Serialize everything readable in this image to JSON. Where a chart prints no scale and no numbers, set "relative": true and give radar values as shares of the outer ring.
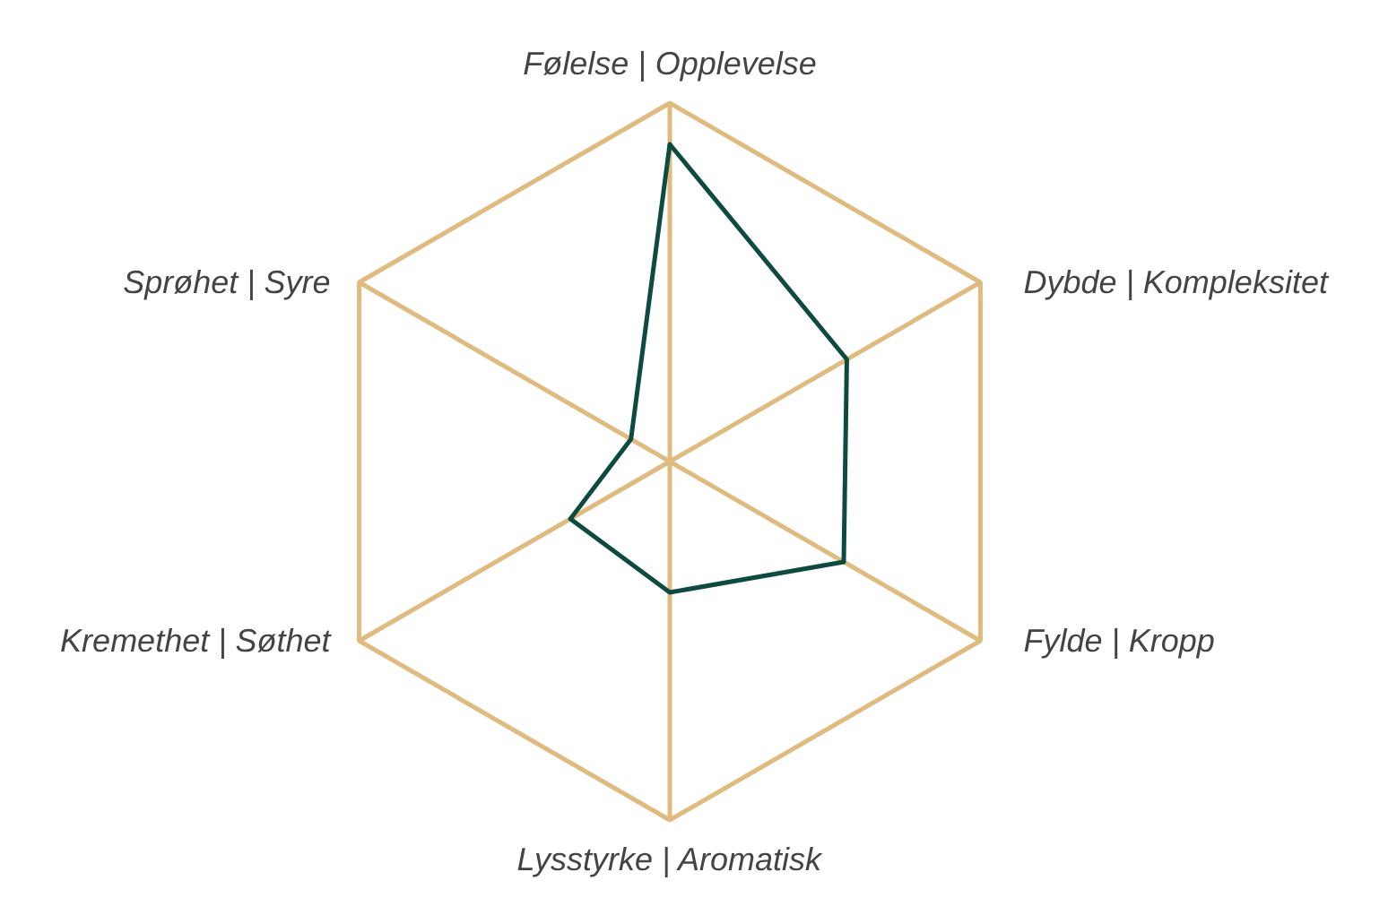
{
  "chart_data": {
    "type": "radar",
    "relative": true,
    "grid": true,
    "categories": [
      "Følelse | Opplevelse",
      "Dybde | Kompleksitet",
      "Fylde | Kropp",
      "Lysstyrke | Aromatisk",
      "Kremethet | Søthet",
      "Sprøhet | Syre"
    ],
    "series": [
      {
        "color": "#0d4a3f",
        "values": [
          0.885,
          0.57,
          0.56,
          0.365,
          0.32,
          0.125
        ]
      }
    ]
  }
}
